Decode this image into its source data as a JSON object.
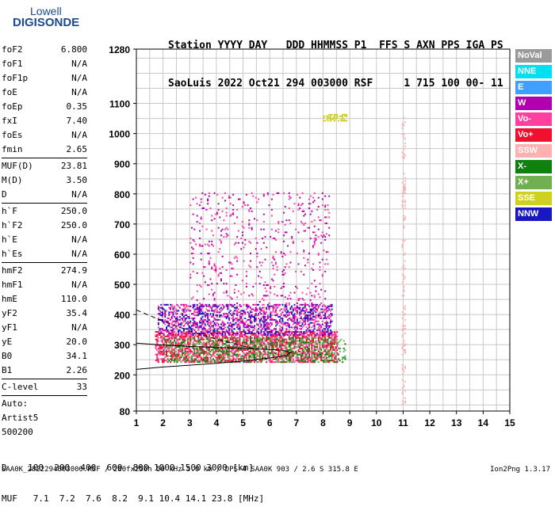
{
  "logo": {
    "line1": "Lowell",
    "line2": "DIGISONDE"
  },
  "header": {
    "labels_line": "Station YYYY DAY   DDD HHMMSS P1  FFS S AXN PPS IGA PS",
    "values_line": "SaoLuis 2022 Oct21 294 003000 RSF     1 715 100 00- 11"
  },
  "params": [
    {
      "k": "foF2",
      "v": "6.800"
    },
    {
      "k": "foF1",
      "v": "N/A"
    },
    {
      "k": "foF1p",
      "v": "N/A"
    },
    {
      "k": "foE",
      "v": "N/A"
    },
    {
      "k": "foEp",
      "v": "0.35"
    },
    {
      "k": "fxI",
      "v": "7.40"
    },
    {
      "k": "foEs",
      "v": "N/A"
    },
    {
      "k": "fmin",
      "v": "2.65"
    },
    {
      "sep": true
    },
    {
      "k": "MUF(D)",
      "v": "23.81"
    },
    {
      "k": "M(D)",
      "v": "3.50"
    },
    {
      "k": "D",
      "v": "N/A"
    },
    {
      "sep": true
    },
    {
      "k": "h`F",
      "v": "250.0"
    },
    {
      "k": "h`F2",
      "v": "250.0"
    },
    {
      "k": "h`E",
      "v": "N/A"
    },
    {
      "k": "h`Es",
      "v": "N/A"
    },
    {
      "sep": true
    },
    {
      "k": "hmF2",
      "v": "274.9"
    },
    {
      "k": "hmF1",
      "v": "N/A"
    },
    {
      "k": "hmE",
      "v": "110.0"
    },
    {
      "k": "yF2",
      "v": "35.4"
    },
    {
      "k": "yF1",
      "v": "N/A"
    },
    {
      "k": "yE",
      "v": "20.0"
    },
    {
      "k": "B0",
      "v": "34.1"
    },
    {
      "k": "B1",
      "v": "2.26"
    },
    {
      "sep": true
    },
    {
      "k": "C-level",
      "v": "33"
    },
    {
      "sep": true
    },
    {
      "text": "Auto:"
    },
    {
      "text": "Artist5"
    },
    {
      "text": "500200"
    }
  ],
  "legend": [
    {
      "label": "NoVal",
      "color": "#9a9a9a"
    },
    {
      "label": "NNE",
      "color": "#00e0f0"
    },
    {
      "label": "E",
      "color": "#40a0ff"
    },
    {
      "label": "W",
      "color": "#b000b0"
    },
    {
      "label": "Vo-",
      "color": "#ff40a0"
    },
    {
      "label": "Vo+",
      "color": "#f01030"
    },
    {
      "label": "SSW",
      "color": "#ffb0b0"
    },
    {
      "label": "X-",
      "color": "#108010"
    },
    {
      "label": "X+",
      "color": "#70b050"
    },
    {
      "label": "SSE",
      "color": "#d0d020"
    },
    {
      "label": "NNW",
      "color": "#1818c0"
    }
  ],
  "footer": {
    "d_line": "D    100  200  400  600  800 1000 1500 3000 [km]",
    "muf_line": "MUF   7.1  7.2  7.6  8.2  9.1 10.4 14.1 23.8 [MHz]",
    "filename": "SAA0K_2022294003000.RSF / 280fx256h 50 kHz 5.0 km / DPS-4 SAA0K 903 / 2.6 S 315.8 E",
    "version": "Ion2Png 1.3.17"
  },
  "chart_data": {
    "type": "scatter",
    "xlim": [
      1,
      15
    ],
    "ylim": [
      80,
      1280
    ],
    "x_ticks": [
      1,
      2,
      3,
      4,
      5,
      6,
      7,
      8,
      9,
      10,
      11,
      12,
      13,
      14,
      15
    ],
    "y_ticks": [
      80,
      200,
      300,
      400,
      500,
      600,
      700,
      800,
      900,
      1000,
      1100,
      1280
    ],
    "x_grid_step": 0.5,
    "y_grid_step": 50,
    "grid": true,
    "clusters": [
      {
        "name": "O-trace (Vo+, Vo-)",
        "colors": [
          "#f01030",
          "#ff40a0"
        ],
        "x": [
          1.7,
          8.5
        ],
        "h": [
          240,
          340
        ],
        "density": 0.55
      },
      {
        "name": "X-trace (X-, X+)",
        "colors": [
          "#108010",
          "#70b050"
        ],
        "x": [
          2.0,
          8.8
        ],
        "h": [
          240,
          320
        ],
        "density": 0.3
      },
      {
        "name": "W echoes",
        "colors": [
          "#b000b0",
          "#ff40a0",
          "#1818c0"
        ],
        "x": [
          1.8,
          8.3
        ],
        "h": [
          330,
          430
        ],
        "density": 0.45
      },
      {
        "name": "W spread",
        "colors": [
          "#b000b0",
          "#ff40a0"
        ],
        "x": [
          3.0,
          8.2
        ],
        "h": [
          430,
          800
        ],
        "density": 0.06
      },
      {
        "name": "SSE",
        "colors": [
          "#d0d020"
        ],
        "x": [
          8.0,
          8.9
        ],
        "h": [
          1040,
          1060
        ],
        "density": 0.5
      },
      {
        "name": "SSW vertical",
        "colors": [
          "#ffb0b0"
        ],
        "x": [
          10.95,
          11.05
        ],
        "h": [
          100,
          1050
        ],
        "density": 0.2
      }
    ],
    "curves": [
      {
        "name": "o-profile",
        "style": "solid",
        "points": [
          [
            1.0,
            218
          ],
          [
            2.0,
            226
          ],
          [
            3.0,
            232
          ],
          [
            4.0,
            238
          ],
          [
            5.0,
            246
          ],
          [
            6.0,
            256
          ],
          [
            6.6,
            264
          ],
          [
            6.8,
            274
          ],
          [
            6.5,
            282
          ],
          [
            5.0,
            288
          ],
          [
            3.0,
            294
          ],
          [
            1.5,
            302
          ],
          [
            1.0,
            305
          ]
        ]
      },
      {
        "name": "x-profile",
        "style": "dashed",
        "points": [
          [
            1.0,
            415
          ],
          [
            2.0,
            378
          ],
          [
            3.0,
            346
          ],
          [
            4.0,
            318
          ],
          [
            4.8,
            300
          ],
          [
            5.5,
            284
          ]
        ]
      }
    ]
  }
}
